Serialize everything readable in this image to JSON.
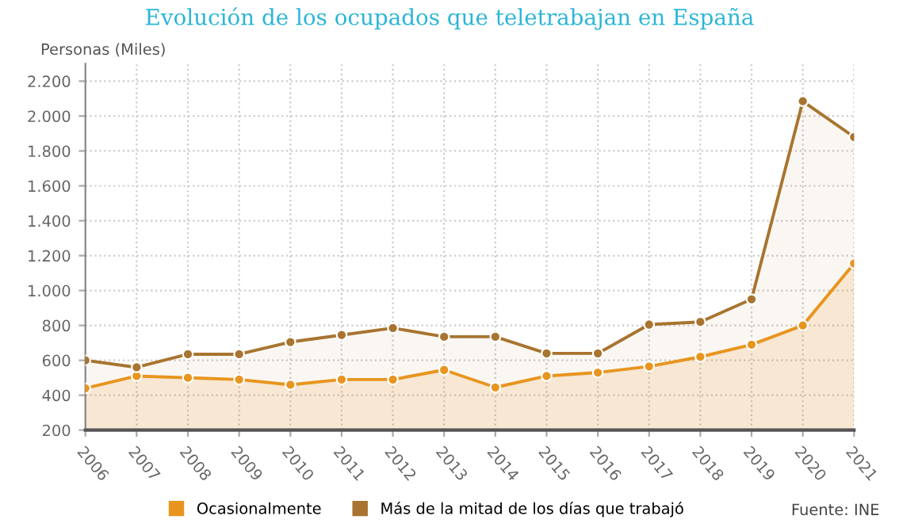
{
  "chart_data": {
    "type": "area",
    "title": "Evolución de los ocupados que teletrabajan en España",
    "ylabel": "Personas (Miles)",
    "categories": [
      "2006",
      "2007",
      "2008",
      "2009",
      "2010",
      "2011",
      "2012",
      "2013",
      "2014",
      "2015",
      "2016",
      "2017",
      "2018",
      "2019",
      "2020",
      "2021"
    ],
    "series": [
      {
        "name": "Ocasionalmente",
        "color": "#e8951f",
        "values": [
          440,
          510,
          500,
          490,
          460,
          490,
          490,
          545,
          445,
          510,
          530,
          565,
          620,
          690,
          800,
          1155
        ]
      },
      {
        "name": "Más de la mitad de los días que trabajó",
        "color": "#a8742f",
        "values": [
          600,
          560,
          635,
          635,
          705,
          745,
          785,
          735,
          735,
          640,
          640,
          805,
          820,
          950,
          2085,
          1880
        ]
      }
    ],
    "ylim": [
      200,
      2300
    ],
    "yticks": [
      {
        "value": 200,
        "label": "200"
      },
      {
        "value": 400,
        "label": "400"
      },
      {
        "value": 600,
        "label": "600"
      },
      {
        "value": 800,
        "label": "800"
      },
      {
        "value": 1000,
        "label": "1.000"
      },
      {
        "value": 1200,
        "label": "1.200"
      },
      {
        "value": 1400,
        "label": "1.400"
      },
      {
        "value": 1600,
        "label": "1.600"
      },
      {
        "value": 1800,
        "label": "1.800"
      },
      {
        "value": 2000,
        "label": "2.000"
      },
      {
        "value": 2200,
        "label": "2.200"
      }
    ],
    "grid": true,
    "legend": "bottom",
    "marker": "circle",
    "line_style": "solid",
    "annotations": [
      "Fuente: INE"
    ]
  }
}
